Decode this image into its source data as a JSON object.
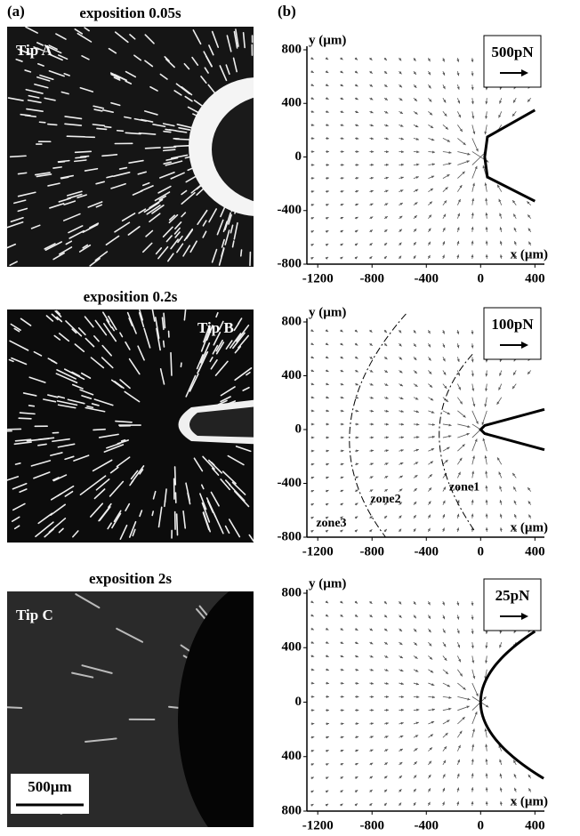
{
  "panel_labels": [
    "(a)",
    "(b)"
  ],
  "photos": [
    {
      "title": "exposition 0.05s",
      "tip": "Tip A"
    },
    {
      "title": "exposition 0.2s",
      "tip": "Tip B"
    },
    {
      "title": "exposition 2s",
      "tip": "Tip C",
      "scale_bar": "500µm"
    }
  ],
  "plots": [
    {
      "y_label": "y (µm)",
      "x_label": "x (µm)",
      "force": "500pN",
      "xlim": [
        -1280,
        470
      ],
      "ylim": [
        -800,
        800
      ],
      "xticks": [
        -1200,
        -800,
        -400,
        0,
        400
      ],
      "yticks": [
        800,
        400,
        0,
        -400,
        -800
      ]
    },
    {
      "y_label": "y (µm)",
      "x_label": "x (µm)",
      "force": "100pN",
      "xlim": [
        -1280,
        470
      ],
      "ylim": [
        -800,
        800
      ],
      "xticks": [
        -1200,
        -800,
        -400,
        0,
        400
      ],
      "yticks": [
        800,
        400,
        0,
        -400,
        -800
      ],
      "zones": [
        "zone1",
        "zone2",
        "zone3"
      ]
    },
    {
      "y_label": "y (µm)",
      "x_label": "x (µm)",
      "force": "25pN",
      "xlim": [
        -1280,
        470
      ],
      "ylim": [
        -800,
        800
      ],
      "xticks": [
        -1200,
        -800,
        -400,
        0,
        400
      ],
      "yticks": [
        800,
        400,
        0,
        {
          "value": -400,
          "label": "400"
        },
        {
          "value": -800,
          "label": "800"
        }
      ]
    }
  ]
}
